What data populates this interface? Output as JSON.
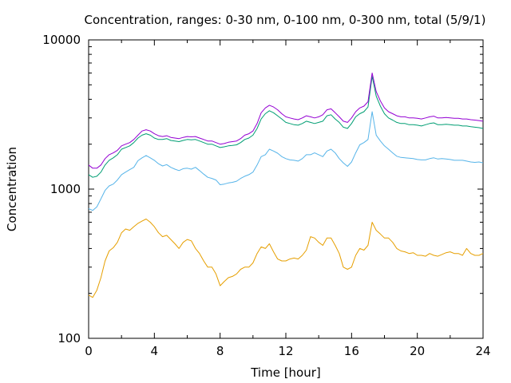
{
  "chart_data": {
    "type": "line",
    "title": "Concentration, ranges: 0-30 nm, 0-100 nm, 0-300 nm, total (5/9/1)",
    "xlabel": "Time [hour]",
    "ylabel": "Concentration",
    "xlim": [
      0,
      24
    ],
    "ylim": [
      100,
      10000
    ],
    "yscale": "log",
    "grid": false,
    "legend": "none",
    "x_ticks": [
      0,
      4,
      8,
      12,
      16,
      20,
      24
    ],
    "x_tick_labels": [
      "0",
      "4",
      "8",
      "12",
      "16",
      "20",
      "24"
    ],
    "y_ticks": [
      100,
      1000,
      10000
    ],
    "y_tick_labels": [
      "100",
      "1000",
      "10000"
    ],
    "x": [
      0,
      0.25,
      0.5,
      0.75,
      1,
      1.25,
      1.5,
      1.75,
      2,
      2.25,
      2.5,
      2.75,
      3,
      3.25,
      3.5,
      3.75,
      4,
      4.25,
      4.5,
      4.75,
      5,
      5.25,
      5.5,
      5.75,
      6,
      6.25,
      6.5,
      6.75,
      7,
      7.25,
      7.5,
      7.75,
      8,
      8.25,
      8.5,
      8.75,
      9,
      9.25,
      9.5,
      9.75,
      10,
      10.25,
      10.5,
      10.75,
      11,
      11.25,
      11.5,
      11.75,
      12,
      12.25,
      12.5,
      12.75,
      13,
      13.25,
      13.5,
      13.75,
      14,
      14.25,
      14.5,
      14.75,
      15,
      15.25,
      15.5,
      15.75,
      16,
      16.25,
      16.5,
      16.75,
      17,
      17.25,
      17.5,
      17.75,
      18,
      18.25,
      18.5,
      18.75,
      19,
      19.25,
      19.5,
      19.75,
      20,
      20.25,
      20.5,
      20.75,
      21,
      21.25,
      21.5,
      21.75,
      22,
      22.25,
      22.5,
      22.75,
      23,
      23.25,
      23.5,
      23.75,
      24
    ],
    "series": [
      {
        "color": "#e69f00",
        "values": [
          195,
          188,
          210,
          255,
          330,
          385,
          405,
          440,
          510,
          540,
          530,
          560,
          590,
          610,
          630,
          600,
          560,
          510,
          480,
          490,
          460,
          430,
          400,
          440,
          460,
          450,
          400,
          370,
          330,
          300,
          300,
          270,
          225,
          240,
          255,
          260,
          270,
          290,
          300,
          300,
          320,
          370,
          410,
          400,
          430,
          380,
          340,
          330,
          330,
          340,
          345,
          340,
          360,
          390,
          480,
          470,
          440,
          420,
          470,
          470,
          420,
          370,
          300,
          290,
          300,
          360,
          400,
          390,
          420,
          600,
          530,
          500,
          470,
          470,
          440,
          400,
          385,
          380,
          370,
          375,
          360,
          360,
          355,
          370,
          360,
          355,
          365,
          375,
          380,
          370,
          370,
          360,
          400,
          370,
          360,
          360,
          370
        ]
      },
      {
        "color": "#56b4e9",
        "values": [
          740,
          720,
          760,
          860,
          980,
          1050,
          1080,
          1150,
          1250,
          1300,
          1350,
          1400,
          1550,
          1620,
          1680,
          1620,
          1560,
          1480,
          1430,
          1460,
          1400,
          1360,
          1330,
          1370,
          1380,
          1360,
          1400,
          1330,
          1260,
          1200,
          1180,
          1150,
          1070,
          1080,
          1100,
          1110,
          1130,
          1180,
          1220,
          1250,
          1300,
          1450,
          1650,
          1700,
          1850,
          1800,
          1740,
          1650,
          1600,
          1570,
          1560,
          1540,
          1600,
          1700,
          1700,
          1750,
          1700,
          1650,
          1800,
          1850,
          1750,
          1600,
          1500,
          1420,
          1520,
          1750,
          1980,
          2050,
          2150,
          3300,
          2300,
          2100,
          1950,
          1850,
          1750,
          1660,
          1630,
          1620,
          1610,
          1600,
          1580,
          1570,
          1570,
          1600,
          1620,
          1590,
          1600,
          1590,
          1580,
          1560,
          1560,
          1560,
          1540,
          1520,
          1510,
          1520,
          1500
        ]
      },
      {
        "color": "#009e73",
        "values": [
          1250,
          1200,
          1220,
          1300,
          1450,
          1560,
          1620,
          1700,
          1850,
          1900,
          1950,
          2050,
          2200,
          2300,
          2350,
          2300,
          2200,
          2150,
          2150,
          2180,
          2120,
          2100,
          2080,
          2120,
          2150,
          2140,
          2150,
          2100,
          2050,
          2000,
          2000,
          1950,
          1900,
          1920,
          1950,
          1960,
          1980,
          2050,
          2150,
          2200,
          2300,
          2550,
          2950,
          3200,
          3350,
          3250,
          3100,
          2950,
          2800,
          2750,
          2700,
          2680,
          2750,
          2850,
          2800,
          2750,
          2800,
          2850,
          3100,
          3150,
          2950,
          2800,
          2600,
          2550,
          2750,
          3050,
          3200,
          3300,
          3550,
          5700,
          4200,
          3600,
          3200,
          3000,
          2900,
          2800,
          2750,
          2750,
          2700,
          2700,
          2680,
          2650,
          2700,
          2750,
          2780,
          2700,
          2700,
          2720,
          2700,
          2680,
          2680,
          2650,
          2650,
          2620,
          2600,
          2580,
          2550
        ]
      },
      {
        "color": "#9400d3",
        "values": [
          1450,
          1380,
          1380,
          1450,
          1600,
          1700,
          1750,
          1820,
          1950,
          2000,
          2050,
          2150,
          2300,
          2450,
          2500,
          2450,
          2350,
          2280,
          2250,
          2280,
          2220,
          2200,
          2180,
          2220,
          2250,
          2240,
          2250,
          2200,
          2150,
          2100,
          2100,
          2050,
          2000,
          2020,
          2060,
          2080,
          2100,
          2180,
          2300,
          2350,
          2450,
          2750,
          3250,
          3500,
          3650,
          3550,
          3400,
          3200,
          3050,
          3000,
          2950,
          2920,
          3000,
          3100,
          3050,
          3000,
          3050,
          3150,
          3400,
          3450,
          3250,
          3050,
          2850,
          2800,
          3000,
          3300,
          3500,
          3600,
          3850,
          6000,
          4500,
          3900,
          3500,
          3300,
          3200,
          3100,
          3050,
          3050,
          3000,
          3000,
          2980,
          2950,
          3000,
          3050,
          3080,
          3000,
          3000,
          3020,
          3000,
          2980,
          2980,
          2950,
          2950,
          2920,
          2900,
          2880,
          2850
        ]
      }
    ]
  }
}
